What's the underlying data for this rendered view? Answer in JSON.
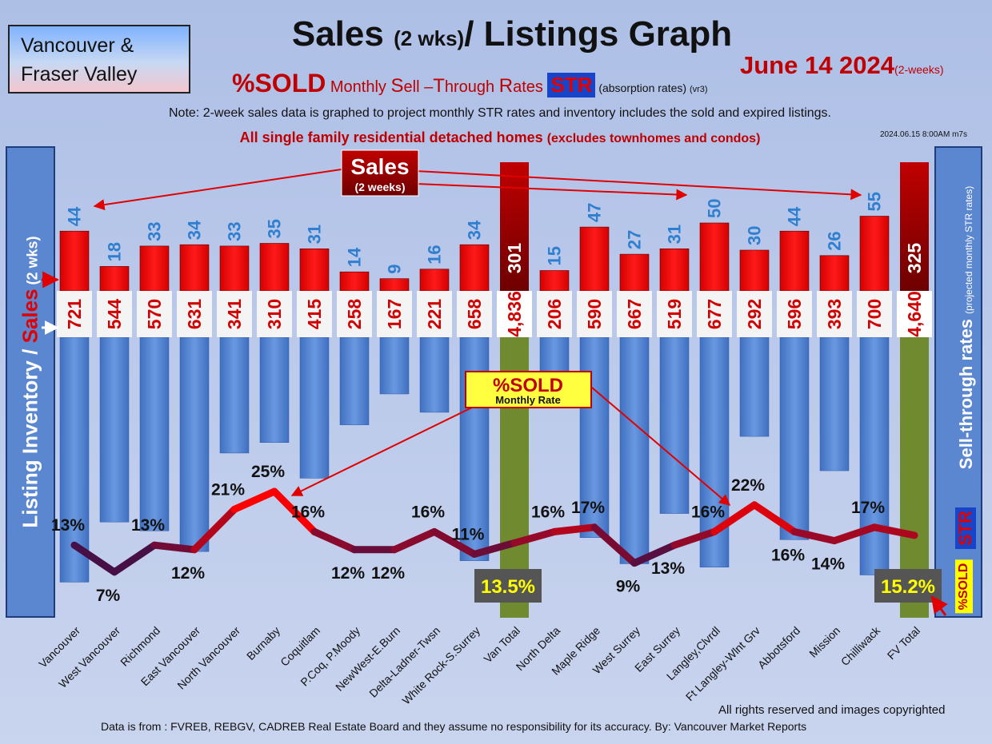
{
  "header": {
    "region_line1": "Vancouver &",
    "region_line2": "Fraser Valley",
    "title_main1": "Sales ",
    "title_small": "(2 wks)",
    "title_main2": "/ Listings Graph",
    "date": "June 14  2024",
    "date_note": "(2-weeks)",
    "sub_sold": "%SOLD",
    "sub_m": " Monthly ",
    "sub_s": "S",
    "sub_ell": "ell –",
    "sub_t": "T",
    "sub_hrough": "hrough ",
    "sub_r": "R",
    "sub_ates": "ates ",
    "sub_str": "STR",
    "sub_abs": "  (absorption rates) ",
    "sub_vr": "(vr3)",
    "note": "Note: 2-week sales data is graphed to project monthly STR rates and inventory includes the sold and expired listings.",
    "scope": "All single family residential detached homes ",
    "scope_small": "(excludes townhomes and condos)",
    "timestamp": "2024.06.15 8:00AM m7s"
  },
  "side": {
    "left_a": "Listing Inventory / ",
    "left_b": "Sales",
    "left_c": " (2  wks)",
    "right_a": "Sell-through rates ",
    "right_b": "(projected monthly STR rates)",
    "right_str": "STR",
    "right_sold": "%SOLD"
  },
  "callouts": {
    "sales_title": "Sales",
    "sales_sub": "(2 weeks)",
    "sold_title": "%SOLD",
    "sold_sub": "Monthly Rate"
  },
  "footer": {
    "copyright": "All rights reserved and  images copyrighted",
    "source": "Data is from : FVREB, REBGV, CADREB Real Estate Board and they assume no responsibility for its accuracy. By: Vancouver Market Reports"
  },
  "chart_data": {
    "type": "bar",
    "categories": [
      "Vancouver",
      "West Vancouver",
      "Richmond",
      "East Vancouver",
      "North Vancouver",
      "Burnaby",
      "Coquitlam",
      "P.Coq, P.Moody",
      "NewWest-E.Burn",
      "Delta-Ladner-Twsn",
      "White Rock-S.Surrey",
      "Van Total",
      "North Delta",
      "Maple Ridge",
      "West Surrey",
      "East Surrey",
      "Langley,Clvrdl",
      "Ft Langley-Wlnt Grv",
      "Abbotsford",
      "Mission",
      "Chilliwack",
      "FV Total"
    ],
    "series": [
      {
        "name": "Sales",
        "values": [
          44,
          18,
          33,
          34,
          33,
          35,
          31,
          14,
          9,
          16,
          34,
          301,
          15,
          47,
          27,
          31,
          50,
          30,
          44,
          26,
          55,
          325
        ]
      },
      {
        "name": "Listing Inventory",
        "values": [
          721,
          544,
          570,
          631,
          341,
          310,
          415,
          258,
          167,
          221,
          658,
          4836,
          206,
          590,
          667,
          519,
          677,
          292,
          596,
          393,
          700,
          4640
        ]
      },
      {
        "name": "%SOLD",
        "values": [
          13,
          7,
          13,
          12,
          21,
          25,
          16,
          12,
          12,
          16,
          11,
          13.5,
          16,
          17,
          9,
          13,
          16,
          22,
          16,
          14,
          17,
          15.2
        ]
      }
    ],
    "sales_labels": [
      "44",
      "18",
      "33",
      "34",
      "33",
      "35",
      "31",
      "14",
      "9",
      "16",
      "34",
      "301",
      "15",
      "47",
      "27",
      "31",
      "50",
      "30",
      "44",
      "26",
      "55",
      "325"
    ],
    "inventory_labels": [
      "721",
      "544",
      "570",
      "631",
      "341",
      "310",
      "415",
      "258",
      "167",
      "221",
      "658",
      "4,836",
      "206",
      "590",
      "667",
      "519",
      "677",
      "292",
      "596",
      "393",
      "700",
      "4,640"
    ],
    "sold_labels": [
      "13%",
      "7%",
      "13%",
      "12%",
      "21%",
      "25%",
      "16%",
      "12%",
      "12%",
      "16%",
      "11%",
      "13.5%",
      "16%",
      "17%",
      "9%",
      "13%",
      "16%",
      "22%",
      "16%",
      "14%",
      "17%",
      "15.2%"
    ],
    "total_indices": [
      11,
      21
    ]
  }
}
